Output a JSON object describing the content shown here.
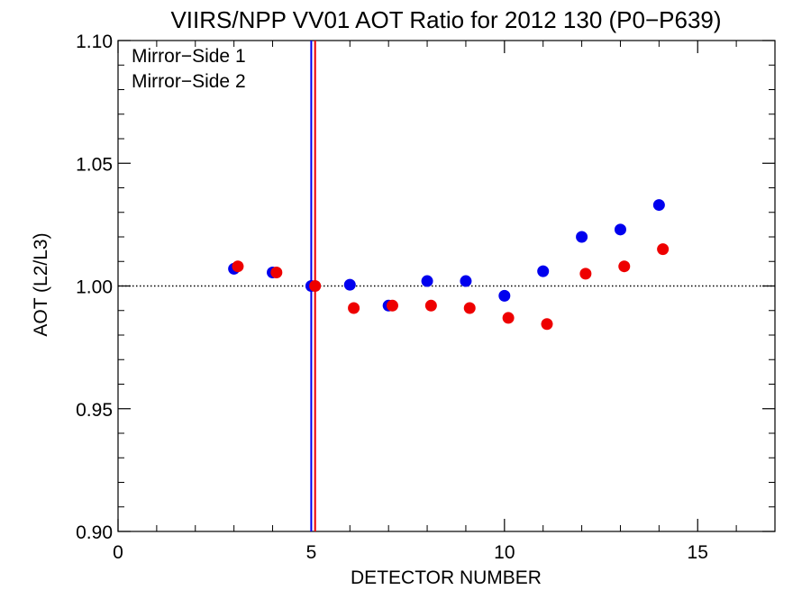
{
  "chart_data": {
    "type": "scatter",
    "title": "VIIRS/NPP VV01 AOT Ratio for 2012 130 (P0−P639)",
    "xlabel": "DETECTOR NUMBER",
    "ylabel": "AOT (L2/L3)",
    "xlim": [
      0,
      17
    ],
    "ylim": [
      0.9,
      1.1
    ],
    "x_ticks": [
      0,
      5,
      10,
      15
    ],
    "x_tick_labels": [
      "0",
      "5",
      "10",
      "15"
    ],
    "y_ticks": [
      0.9,
      0.95,
      1.0,
      1.05,
      1.1
    ],
    "y_tick_labels": [
      "0.90",
      "0.95",
      "1.00",
      "1.05",
      "1.10"
    ],
    "reference_line": {
      "y": 1.0,
      "style": "dotted",
      "color": "#000000"
    },
    "grid": false,
    "legend_position": "top-left",
    "series": [
      {
        "name": "Mirror−Side 1",
        "color": "#0000ee",
        "x": [
          3,
          4,
          5,
          6,
          7,
          8,
          9,
          10,
          11,
          12,
          13,
          14
        ],
        "y": [
          1.007,
          1.0055,
          1.0,
          1.0005,
          0.992,
          1.002,
          1.002,
          0.996,
          1.006,
          1.02,
          1.023,
          1.033
        ],
        "vline_x": 5.0
      },
      {
        "name": "Mirror−Side 2",
        "color": "#ee0000",
        "x": [
          3.1,
          4.1,
          5.1,
          6.1,
          7.1,
          8.1,
          9.1,
          10.1,
          11.1,
          12.1,
          13.1,
          14.1
        ],
        "y": [
          1.008,
          1.0055,
          1.0,
          0.991,
          0.992,
          0.992,
          0.991,
          0.987,
          0.9845,
          1.005,
          1.008,
          1.015
        ],
        "vline_x": 5.1
      }
    ]
  }
}
